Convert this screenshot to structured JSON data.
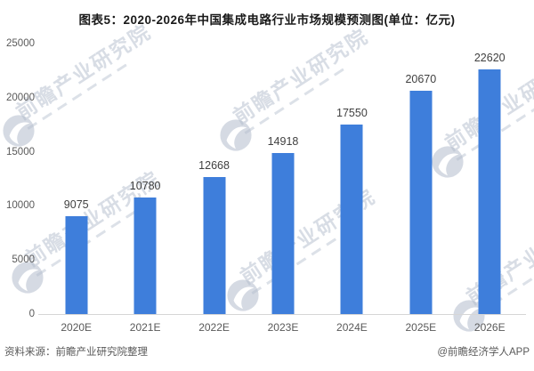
{
  "title": "图表5：2020-2026年中国集成电路行业市场规模预测图(单位：亿元)",
  "chart_data": {
    "type": "bar",
    "categories": [
      "2020E",
      "2021E",
      "2022E",
      "2023E",
      "2024E",
      "2025E",
      "2026E"
    ],
    "values": [
      9075,
      10780,
      12668,
      14918,
      17550,
      20670,
      22620
    ],
    "title": "图表5：2020-2026年中国集成电路行业市场规模预测图(单位：亿元)",
    "xlabel": "",
    "ylabel": "",
    "unit": "亿元",
    "ylim": [
      0,
      25000
    ],
    "yticks": [
      0,
      5000,
      10000,
      15000,
      20000,
      25000
    ],
    "grid": false,
    "legend": "none",
    "bar_color": "#3e7edb",
    "data_label_color": "#404040",
    "axis_label_color": "#595959"
  },
  "footer": {
    "source": "资料来源：前瞻产业研究院整理",
    "credit": "@前瞻经济学人APP"
  },
  "watermark": {
    "text": "前瞻产业研究院",
    "logo": "qianzhan-logo"
  }
}
